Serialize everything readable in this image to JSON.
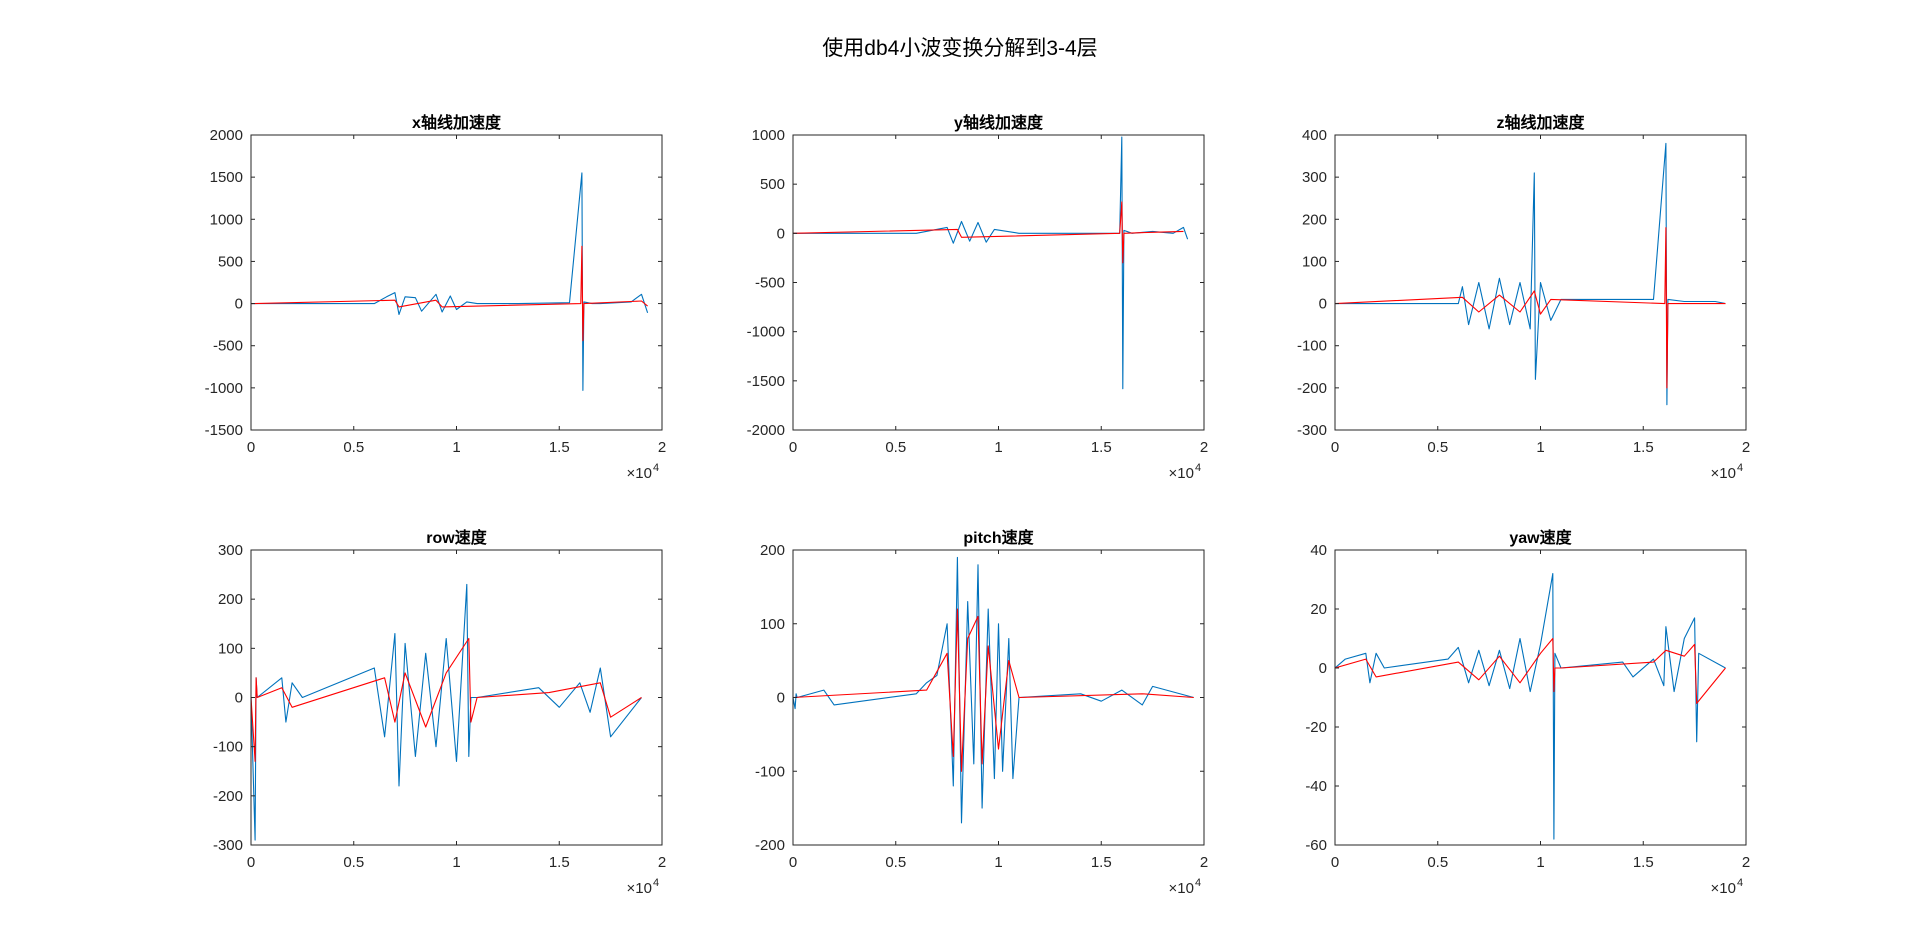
{
  "figure": {
    "suptitle": "使用db4小波变换分解到3-4层",
    "colors": {
      "background": "#ffffff",
      "axis": "#262626",
      "series_original": "#0072bd",
      "series_reconstructed": "#ff0000"
    }
  },
  "chart_data": [
    {
      "type": "line",
      "title": "x轴线加速度",
      "xlim": [
        0,
        20000
      ],
      "ylim": [
        -1500,
        2000
      ],
      "xticks": [
        0,
        5000,
        10000,
        15000,
        20000
      ],
      "xtick_labels": [
        "0",
        "0.5",
        "1",
        "1.5",
        "2"
      ],
      "xexponent_base": "×10",
      "xexponent_power": "4",
      "yticks": [
        -1500,
        -1000,
        -500,
        0,
        500,
        1000,
        1500,
        2000
      ],
      "ytick_labels": [
        "-1500",
        "-1000",
        "-500",
        "0",
        "500",
        "1000",
        "1500",
        "2000"
      ],
      "grid": false,
      "series": [
        {
          "color": "#0072bd",
          "x": [
            0,
            6000,
            6600,
            7000,
            7200,
            7500,
            8000,
            8300,
            9000,
            9300,
            9700,
            10000,
            10500,
            11000,
            13000,
            15500,
            16100,
            16150,
            16200,
            16600,
            17000,
            18500,
            19000,
            19300
          ],
          "y": [
            0,
            0,
            80,
            130,
            -130,
            80,
            70,
            -90,
            110,
            -100,
            90,
            -70,
            20,
            0,
            0,
            10,
            1550,
            -1030,
            20,
            0,
            0,
            20,
            110,
            -110
          ]
        },
        {
          "color": "#ff0000",
          "x": [
            0,
            7000,
            7200,
            9000,
            9300,
            16050,
            16100,
            16150,
            16200,
            19000,
            19300
          ],
          "y": [
            0,
            40,
            -40,
            40,
            -40,
            0,
            680,
            -440,
            0,
            30,
            -30
          ]
        }
      ]
    },
    {
      "type": "line",
      "title": "y轴线加速度",
      "xlim": [
        0,
        20000
      ],
      "ylim": [
        -2000,
        1000
      ],
      "xticks": [
        0,
        5000,
        10000,
        15000,
        20000
      ],
      "xtick_labels": [
        "0",
        "0.5",
        "1",
        "1.5",
        "2"
      ],
      "xexponent_base": "×10",
      "xexponent_power": "4",
      "yticks": [
        -2000,
        -1500,
        -1000,
        -500,
        0,
        500,
        1000
      ],
      "ytick_labels": [
        "-2000",
        "-1500",
        "-1000",
        "-500",
        "0",
        "500",
        "1000"
      ],
      "grid": false,
      "series": [
        {
          "color": "#0072bd",
          "x": [
            0,
            6000,
            7500,
            7800,
            8200,
            8600,
            9000,
            9400,
            9800,
            11000,
            15900,
            16000,
            16050,
            16100,
            16500,
            17500,
            18500,
            19000,
            19200
          ],
          "y": [
            0,
            0,
            60,
            -100,
            120,
            -80,
            110,
            -90,
            40,
            0,
            0,
            980,
            -1580,
            30,
            0,
            20,
            0,
            60,
            -60
          ]
        },
        {
          "color": "#ff0000",
          "x": [
            0,
            8000,
            8200,
            15900,
            16000,
            16050,
            16100,
            17500,
            19000
          ],
          "y": [
            0,
            40,
            -40,
            0,
            320,
            -300,
            0,
            10,
            20
          ]
        }
      ]
    },
    {
      "type": "line",
      "title": "z轴线加速度",
      "xlim": [
        0,
        20000
      ],
      "ylim": [
        -300,
        400
      ],
      "xticks": [
        0,
        5000,
        10000,
        15000,
        20000
      ],
      "xtick_labels": [
        "0",
        "0.5",
        "1",
        "1.5",
        "2"
      ],
      "xexponent_base": "×10",
      "xexponent_power": "4",
      "yticks": [
        -300,
        -200,
        -100,
        0,
        100,
        200,
        300,
        400
      ],
      "ytick_labels": [
        "-300",
        "-200",
        "-100",
        "0",
        "100",
        "200",
        "300",
        "400"
      ],
      "grid": false,
      "series": [
        {
          "color": "#0072bd",
          "x": [
            0,
            6000,
            6200,
            6500,
            7000,
            7500,
            8000,
            8500,
            9000,
            9500,
            9700,
            9750,
            10000,
            10500,
            11000,
            13000,
            15500,
            16100,
            16150,
            16200,
            17000,
            18500,
            19000
          ],
          "y": [
            0,
            0,
            40,
            -50,
            50,
            -60,
            60,
            -50,
            50,
            -60,
            310,
            -180,
            50,
            -40,
            10,
            10,
            10,
            380,
            -240,
            10,
            5,
            5,
            0
          ]
        },
        {
          "color": "#ff0000",
          "x": [
            0,
            6200,
            7000,
            8000,
            9000,
            9700,
            10000,
            10500,
            16050,
            16100,
            16150,
            16200,
            19000
          ],
          "y": [
            0,
            15,
            -20,
            20,
            -20,
            30,
            -25,
            10,
            0,
            180,
            -200,
            0,
            0
          ]
        }
      ]
    },
    {
      "type": "line",
      "title": "row速度",
      "xlim": [
        0,
        20000
      ],
      "ylim": [
        -300,
        300
      ],
      "xticks": [
        0,
        5000,
        10000,
        15000,
        20000
      ],
      "xtick_labels": [
        "0",
        "0.5",
        "1",
        "1.5",
        "2"
      ],
      "xexponent_base": "×10",
      "xexponent_power": "4",
      "yticks": [
        -300,
        -200,
        -100,
        0,
        100,
        200,
        300
      ],
      "ytick_labels": [
        "-300",
        "-200",
        "-100",
        "0",
        "100",
        "200",
        "300"
      ],
      "grid": false,
      "series": [
        {
          "color": "#0072bd",
          "x": [
            0,
            200,
            250,
            300,
            1500,
            1700,
            2000,
            2500,
            6000,
            6500,
            7000,
            7200,
            7500,
            8000,
            8500,
            9000,
            9500,
            10000,
            10500,
            10600,
            10700,
            11000,
            14000,
            15000,
            16000,
            16500,
            17000,
            17500,
            19000
          ],
          "y": [
            0,
            -290,
            40,
            0,
            40,
            -50,
            30,
            0,
            60,
            -80,
            130,
            -180,
            110,
            -120,
            90,
            -100,
            120,
            -130,
            230,
            -120,
            0,
            0,
            20,
            -20,
            30,
            -30,
            60,
            -80,
            0
          ]
        },
        {
          "color": "#ff0000",
          "x": [
            0,
            200,
            250,
            300,
            1500,
            2000,
            6500,
            7000,
            7500,
            8500,
            9500,
            10600,
            10700,
            11000,
            14500,
            17000,
            17500,
            19000
          ],
          "y": [
            0,
            -130,
            40,
            0,
            20,
            -20,
            40,
            -50,
            50,
            -60,
            50,
            120,
            -50,
            0,
            10,
            30,
            -40,
            0
          ]
        }
      ]
    },
    {
      "type": "line",
      "title": "pitch速度",
      "xlim": [
        0,
        20000
      ],
      "ylim": [
        -200,
        200
      ],
      "xticks": [
        0,
        5000,
        10000,
        15000,
        20000
      ],
      "xtick_labels": [
        "0",
        "0.5",
        "1",
        "1.5",
        "2"
      ],
      "xexponent_base": "×10",
      "xexponent_power": "4",
      "yticks": [
        -200,
        -100,
        0,
        100,
        200
      ],
      "ytick_labels": [
        "-200",
        "-100",
        "0",
        "100",
        "200"
      ],
      "grid": false,
      "series": [
        {
          "color": "#0072bd",
          "x": [
            0,
            100,
            150,
            200,
            1500,
            2000,
            6000,
            6500,
            7000,
            7500,
            7800,
            8000,
            8200,
            8500,
            8800,
            9000,
            9200,
            9500,
            9800,
            10000,
            10200,
            10500,
            10700,
            11000,
            14000,
            15000,
            16000,
            17000,
            17500,
            19500
          ],
          "y": [
            0,
            -15,
            5,
            0,
            10,
            -10,
            5,
            20,
            30,
            100,
            -120,
            190,
            -170,
            130,
            -90,
            180,
            -150,
            120,
            -110,
            100,
            -100,
            80,
            -110,
            0,
            5,
            -5,
            10,
            -10,
            15,
            0
          ]
        },
        {
          "color": "#ff0000",
          "x": [
            0,
            6500,
            7500,
            7800,
            8000,
            8200,
            8500,
            9000,
            9200,
            9500,
            10000,
            10500,
            11000,
            17000,
            19500
          ],
          "y": [
            0,
            10,
            60,
            -80,
            120,
            -100,
            80,
            110,
            -90,
            70,
            -70,
            50,
            0,
            5,
            0
          ]
        }
      ]
    },
    {
      "type": "line",
      "title": "yaw速度",
      "xlim": [
        0,
        20000
      ],
      "ylim": [
        -60,
        40
      ],
      "xticks": [
        0,
        5000,
        10000,
        15000,
        20000
      ],
      "xtick_labels": [
        "0",
        "0.5",
        "1",
        "1.5",
        "2"
      ],
      "xexponent_base": "×10",
      "xexponent_power": "4",
      "yticks": [
        -60,
        -40,
        -20,
        0,
        20,
        40
      ],
      "ytick_labels": [
        "-60",
        "-40",
        "-20",
        "0",
        "20",
        "40"
      ],
      "grid": false,
      "series": [
        {
          "color": "#0072bd",
          "x": [
            0,
            500,
            1500,
            1700,
            2000,
            2400,
            5500,
            6000,
            6500,
            7000,
            7500,
            8000,
            8500,
            9000,
            9500,
            10000,
            10600,
            10650,
            10700,
            11000,
            14000,
            14500,
            15500,
            16000,
            16100,
            16500,
            17000,
            17500,
            17600,
            17700,
            19000
          ],
          "y": [
            0,
            3,
            5,
            -5,
            5,
            0,
            3,
            7,
            -5,
            6,
            -6,
            6,
            -7,
            10,
            -8,
            8,
            32,
            -58,
            5,
            0,
            2,
            -3,
            3,
            -6,
            14,
            -8,
            10,
            17,
            -25,
            5,
            0
          ]
        },
        {
          "color": "#ff0000",
          "x": [
            0,
            1500,
            2000,
            6000,
            7000,
            8000,
            9000,
            10000,
            10600,
            10650,
            10700,
            11000,
            15500,
            16100,
            17000,
            17500,
            17600,
            19000
          ],
          "y": [
            0,
            3,
            -3,
            2,
            -4,
            4,
            -5,
            5,
            10,
            -8,
            0,
            0,
            2,
            6,
            4,
            8,
            -12,
            0
          ]
        }
      ]
    }
  ]
}
